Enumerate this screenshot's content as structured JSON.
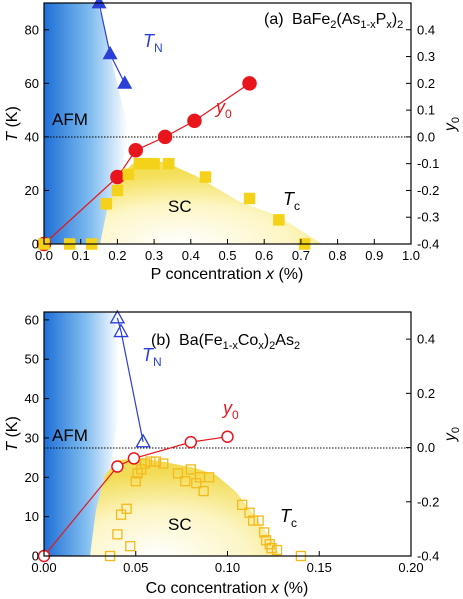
{
  "chart_data": [
    {
      "type": "scatter",
      "panel_label": "(a)",
      "title_parts": [
        "BaFe",
        "2",
        "(As",
        "1-x",
        "P",
        "x",
        ")",
        "2"
      ],
      "xlabel_text": "P concentration ",
      "xlabel_var": "x",
      "xlabel_unit": " (%)",
      "ylabel_var": "T",
      "ylabel_unit": " (K)",
      "y2label": "y",
      "y2label_sub": "0",
      "xlim": [
        0,
        1.0
      ],
      "ylim": [
        0,
        90
      ],
      "y2lim": [
        -0.4,
        0.5
      ],
      "xticks": [
        "0.0",
        "0.1",
        "0.2",
        "0.3",
        "0.4",
        "0.5",
        "0.6",
        "0.7",
        "0.8",
        "0.9",
        "1.0"
      ],
      "yticks": [
        "0",
        "20",
        "40",
        "60",
        "80"
      ],
      "y2ticks": [
        "-0.4",
        "-0.3",
        "-0.2",
        "-0.1",
        "0.0",
        "0.1",
        "0.2",
        "0.3",
        "0.4"
      ],
      "region_labels": [
        "AFM",
        "SC"
      ],
      "series": [
        {
          "name": "T",
          "name_sub": "N",
          "marker": "triangle-filled",
          "color": "#2b3fd8",
          "x": [
            0.15,
            0.18,
            0.22
          ],
          "y": [
            90,
            71,
            60
          ]
        },
        {
          "name": "y",
          "name_sub": "0",
          "marker": "circle-filled",
          "color": "#e8161c",
          "axis": "right",
          "x": [
            0.0,
            0.2,
            0.25,
            0.33,
            0.41,
            0.56
          ],
          "y": [
            -0.4,
            -0.15,
            -0.05,
            0.0,
            0.06,
            0.2
          ]
        },
        {
          "name": "T",
          "name_sub": "c",
          "marker": "square-filled",
          "color": "#f5d21a",
          "x": [
            0.0,
            0.07,
            0.13,
            0.17,
            0.2,
            0.23,
            0.26,
            0.28,
            0.3,
            0.34,
            0.44,
            0.56,
            0.64,
            0.71
          ],
          "y": [
            0,
            0,
            0,
            15,
            20,
            26,
            30,
            30,
            30,
            30,
            25,
            17,
            9,
            0
          ]
        }
      ]
    },
    {
      "type": "scatter",
      "panel_label": "(b)",
      "title_parts": [
        "Ba(Fe",
        "1-x",
        "Co",
        "x",
        ")",
        "2",
        "As",
        "2"
      ],
      "xlabel_text": "Co concentration ",
      "xlabel_var": "x",
      "xlabel_unit": " (%)",
      "ylabel_var": "T",
      "ylabel_unit": " (K)",
      "y2label": "y",
      "y2label_sub": "0",
      "xlim": [
        0,
        0.2
      ],
      "ylim": [
        0,
        62
      ],
      "y2lim": [
        -0.4,
        0.5
      ],
      "xticks": [
        "0.00",
        "0.05",
        "0.10",
        "0.15",
        "0.20"
      ],
      "yticks": [
        "0",
        "10",
        "20",
        "30",
        "40",
        "50",
        "60"
      ],
      "y2ticks": [
        "-0.4",
        "-0.2",
        "0.0",
        "0.2",
        "0.4"
      ],
      "region_labels": [
        "AFM",
        "SC"
      ],
      "series": [
        {
          "name": "T",
          "name_sub": "N",
          "marker": "triangle-open",
          "color": "#2b3fd8",
          "x": [
            0.04,
            0.042,
            0.054
          ],
          "y": [
            60.5,
            57,
            29
          ]
        },
        {
          "name": "y",
          "name_sub": "0",
          "marker": "circle-open",
          "color": "#e8161c",
          "axis": "right",
          "x": [
            0.0,
            0.04,
            0.049,
            0.08,
            0.1
          ],
          "y": [
            -0.4,
            -0.07,
            -0.04,
            0.02,
            0.04
          ]
        },
        {
          "name": "T",
          "name_sub": "c",
          "marker": "square-open",
          "color": "#f5b91a",
          "x": [
            0.036,
            0.04,
            0.042,
            0.045,
            0.047,
            0.05,
            0.051,
            0.053,
            0.055,
            0.058,
            0.061,
            0.065,
            0.073,
            0.077,
            0.08,
            0.083,
            0.085,
            0.087,
            0.09,
            0.108,
            0.112,
            0.114,
            0.117,
            0.12,
            0.121,
            0.123,
            0.124,
            0.127,
            0.14
          ],
          "y": [
            0,
            5.5,
            10.5,
            12,
            2.5,
            19,
            21,
            22,
            23.5,
            24,
            24,
            23.5,
            21,
            19,
            22,
            18.5,
            20,
            16.5,
            20,
            13,
            11,
            9,
            9,
            6,
            4,
            3,
            2,
            1.5,
            0
          ]
        }
      ]
    }
  ]
}
